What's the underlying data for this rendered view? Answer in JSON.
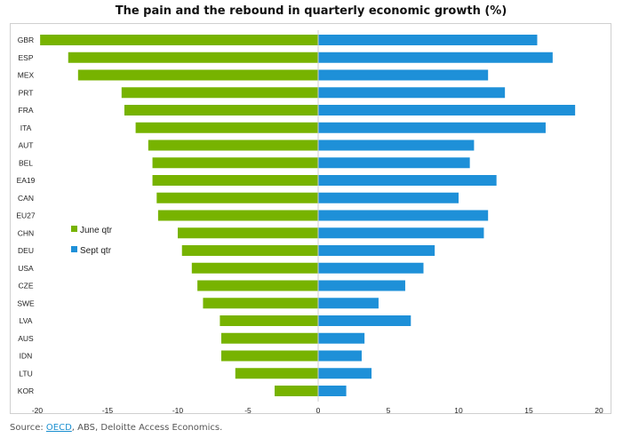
{
  "chart_data": {
    "type": "bar",
    "orientation": "horizontal",
    "title": "The pain and the rebound in quarterly economic growth (%)",
    "xlabel": "",
    "ylabel": "",
    "xlim": [
      -20,
      20
    ],
    "xticks": [
      -20,
      -15,
      -10,
      -5,
      0,
      5,
      10,
      15,
      20
    ],
    "grid": false,
    "legend_position": "left-middle",
    "categories": [
      "GBR",
      "ESP",
      "MEX",
      "PRT",
      "FRA",
      "ITA",
      "AUT",
      "BEL",
      "EA19",
      "CAN",
      "EU27",
      "CHN",
      "DEU",
      "USA",
      "CZE",
      "SWE",
      "LVA",
      "AUS",
      "IDN",
      "LTU",
      "KOR"
    ],
    "series": [
      {
        "name": "June qtr",
        "color": "#77b300",
        "values": [
          -19.8,
          -17.8,
          -17.1,
          -14.0,
          -13.8,
          -13.0,
          -12.1,
          -11.8,
          -11.8,
          -11.5,
          -11.4,
          -10.0,
          -9.7,
          -9.0,
          -8.6,
          -8.2,
          -7.0,
          -6.9,
          -6.9,
          -5.9,
          -3.1
        ]
      },
      {
        "name": "Sept qtr",
        "color": "#1e90d8",
        "values": [
          15.6,
          16.7,
          12.1,
          13.3,
          18.3,
          16.2,
          11.1,
          10.8,
          12.7,
          10.0,
          12.1,
          11.8,
          8.3,
          7.5,
          6.2,
          4.3,
          6.6,
          3.3,
          3.1,
          3.8,
          2.0
        ]
      }
    ]
  },
  "source": {
    "prefix": "Source: ",
    "link_text": "OECD",
    "suffix": ", ABS, Deloitte Access Economics."
  }
}
